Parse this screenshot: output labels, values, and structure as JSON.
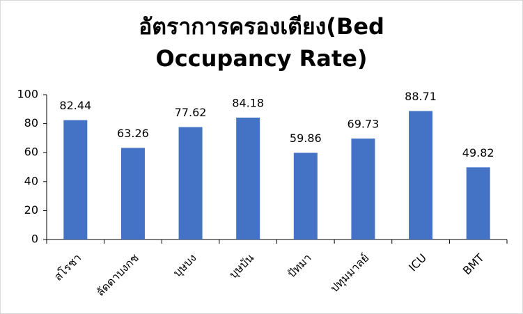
{
  "chart_data": {
    "type": "bar",
    "title": "อัตราการครองเตียง(Bed Occupancy Rate)",
    "categories": [
      "สโรชา",
      "ลัดดาบงกช",
      "บุษบง",
      "บุษบัน",
      "ปัทมา",
      "ปทุมมาลย์",
      "ICU",
      "BMT"
    ],
    "values": [
      82.44,
      63.26,
      77.62,
      84.18,
      59.86,
      69.73,
      88.71,
      49.82
    ],
    "color": "#4472c4",
    "ylim": [
      0,
      100
    ],
    "yticks": [
      0,
      20,
      40,
      60,
      80,
      100
    ],
    "grid": false
  }
}
